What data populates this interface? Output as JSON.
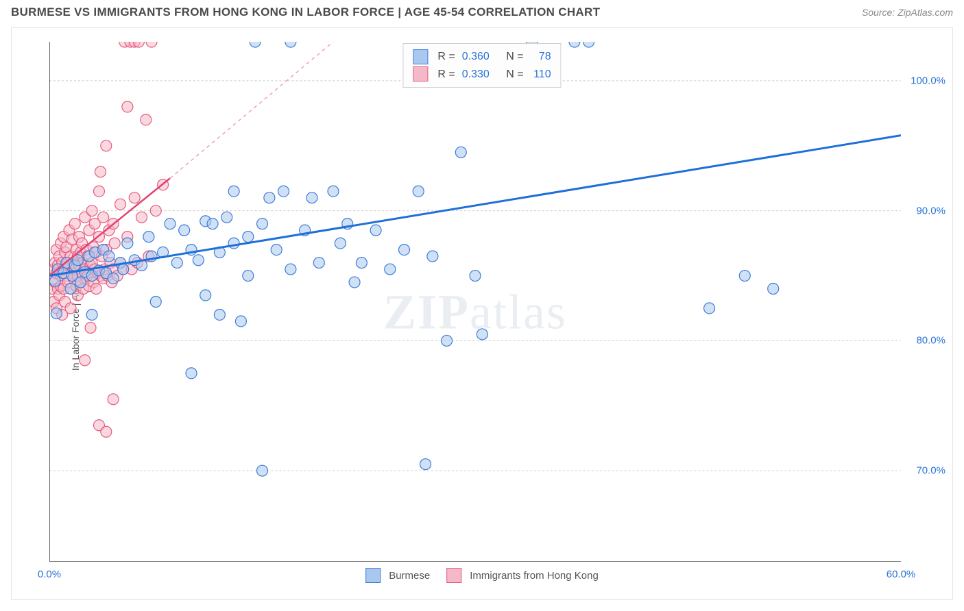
{
  "title": "BURMESE VS IMMIGRANTS FROM HONG KONG IN LABOR FORCE | AGE 45-54 CORRELATION CHART",
  "source": "Source: ZipAtlas.com",
  "ylabel": "In Labor Force | Age 45-54",
  "watermark_a": "ZIP",
  "watermark_b": "atlas",
  "chart": {
    "type": "scatter",
    "xlim": [
      0,
      60
    ],
    "ylim": [
      63,
      103
    ],
    "x_ticks": [
      0,
      10,
      20,
      30,
      40,
      50,
      60
    ],
    "x_tick_labels": [
      "0.0%",
      "",
      "",
      "",
      "",
      "",
      "60.0%"
    ],
    "y_grid": [
      70,
      80,
      90,
      100
    ],
    "y_tick_labels": [
      "70.0%",
      "80.0%",
      "90.0%",
      "100.0%"
    ],
    "grid_color": "#cccccc",
    "axis_color": "#333333",
    "background": "#ffffff",
    "marker_radius": 8,
    "marker_opacity": 0.55,
    "series": [
      {
        "name": "Burmese",
        "fill": "#a9c8ef",
        "stroke": "#3b7dd8",
        "trend_color": "#1e6fd9",
        "trend_width": 3,
        "r_value": "0.360",
        "n_value": "78",
        "trend": {
          "x1": 0,
          "y1": 85.0,
          "x2": 60,
          "y2": 95.8
        },
        "points": [
          [
            0.4,
            84.6
          ],
          [
            0.5,
            82.1
          ],
          [
            0.6,
            85.5
          ],
          [
            1.0,
            85.2
          ],
          [
            1.2,
            86.0
          ],
          [
            1.5,
            84.0
          ],
          [
            1.6,
            85.0
          ],
          [
            1.8,
            85.8
          ],
          [
            2.0,
            86.2
          ],
          [
            2.2,
            84.5
          ],
          [
            2.5,
            85.3
          ],
          [
            2.8,
            86.5
          ],
          [
            3.0,
            85.0
          ],
          [
            3.0,
            82.0
          ],
          [
            3.2,
            86.8
          ],
          [
            3.5,
            85.4
          ],
          [
            3.8,
            87.0
          ],
          [
            4.0,
            85.2
          ],
          [
            4.2,
            86.5
          ],
          [
            4.5,
            84.8
          ],
          [
            5.0,
            86.0
          ],
          [
            5.2,
            85.5
          ],
          [
            5.5,
            87.5
          ],
          [
            6.0,
            86.2
          ],
          [
            6.5,
            85.8
          ],
          [
            7.0,
            88.0
          ],
          [
            7.2,
            86.5
          ],
          [
            7.5,
            83.0
          ],
          [
            8.0,
            86.8
          ],
          [
            8.5,
            89.0
          ],
          [
            9.0,
            86.0
          ],
          [
            9.5,
            88.5
          ],
          [
            10.0,
            87.0
          ],
          [
            10.0,
            77.5
          ],
          [
            10.5,
            86.2
          ],
          [
            11.0,
            89.2
          ],
          [
            11.0,
            83.5
          ],
          [
            11.5,
            89.0
          ],
          [
            12.0,
            86.8
          ],
          [
            12.0,
            82.0
          ],
          [
            12.5,
            89.5
          ],
          [
            13.0,
            87.5
          ],
          [
            13.0,
            91.5
          ],
          [
            13.5,
            81.5
          ],
          [
            14.0,
            88.0
          ],
          [
            14.0,
            85.0
          ],
          [
            14.5,
            103.0
          ],
          [
            15.0,
            89.0
          ],
          [
            15.0,
            70.0
          ],
          [
            15.5,
            91.0
          ],
          [
            16.0,
            87.0
          ],
          [
            16.5,
            91.5
          ],
          [
            17.0,
            85.5
          ],
          [
            17.0,
            103.0
          ],
          [
            18.0,
            88.5
          ],
          [
            18.5,
            91.0
          ],
          [
            19.0,
            86.0
          ],
          [
            20.0,
            91.5
          ],
          [
            20.5,
            87.5
          ],
          [
            21.0,
            89.0
          ],
          [
            21.5,
            84.5
          ],
          [
            22.0,
            86.0
          ],
          [
            23.0,
            88.5
          ],
          [
            24.0,
            85.5
          ],
          [
            25.0,
            87.0
          ],
          [
            26.0,
            91.5
          ],
          [
            26.5,
            70.5
          ],
          [
            27.0,
            86.5
          ],
          [
            28.0,
            80.0
          ],
          [
            29.0,
            94.5
          ],
          [
            30.0,
            85.0
          ],
          [
            30.5,
            80.5
          ],
          [
            34.0,
            103.0
          ],
          [
            37.0,
            103.0
          ],
          [
            38.0,
            103.0
          ],
          [
            46.5,
            82.5
          ],
          [
            49.0,
            85.0
          ],
          [
            51.0,
            84.0
          ]
        ]
      },
      {
        "name": "Immigrants from Hong Kong",
        "fill": "#f4b8c6",
        "stroke": "#e85a7f",
        "trend_color": "#e34070",
        "trend_width": 2.5,
        "r_value": "0.330",
        "n_value": "110",
        "trend": {
          "x1": 0,
          "y1": 85.0,
          "x2": 8.5,
          "y2": 92.5
        },
        "trend_dash": {
          "x1": 8.5,
          "y1": 92.5,
          "x2": 20,
          "y2": 103
        },
        "points": [
          [
            0.2,
            84.0
          ],
          [
            0.3,
            85.5
          ],
          [
            0.3,
            83.0
          ],
          [
            0.4,
            86.0
          ],
          [
            0.4,
            84.5
          ],
          [
            0.5,
            85.2
          ],
          [
            0.5,
            87.0
          ],
          [
            0.5,
            82.5
          ],
          [
            0.6,
            85.8
          ],
          [
            0.6,
            84.0
          ],
          [
            0.7,
            86.5
          ],
          [
            0.7,
            83.5
          ],
          [
            0.8,
            85.0
          ],
          [
            0.8,
            87.5
          ],
          [
            0.8,
            84.2
          ],
          [
            0.9,
            86.0
          ],
          [
            0.9,
            82.0
          ],
          [
            1.0,
            85.5
          ],
          [
            1.0,
            88.0
          ],
          [
            1.0,
            84.0
          ],
          [
            1.1,
            86.8
          ],
          [
            1.1,
            83.0
          ],
          [
            1.2,
            85.0
          ],
          [
            1.2,
            87.2
          ],
          [
            1.3,
            84.5
          ],
          [
            1.3,
            86.0
          ],
          [
            1.4,
            85.8
          ],
          [
            1.4,
            88.5
          ],
          [
            1.5,
            84.0
          ],
          [
            1.5,
            86.5
          ],
          [
            1.5,
            82.5
          ],
          [
            1.6,
            85.2
          ],
          [
            1.6,
            87.8
          ],
          [
            1.7,
            84.8
          ],
          [
            1.7,
            86.0
          ],
          [
            1.8,
            85.5
          ],
          [
            1.8,
            89.0
          ],
          [
            1.9,
            84.2
          ],
          [
            1.9,
            87.0
          ],
          [
            2.0,
            85.0
          ],
          [
            2.0,
            86.5
          ],
          [
            2.0,
            83.5
          ],
          [
            2.1,
            85.8
          ],
          [
            2.1,
            88.0
          ],
          [
            2.2,
            84.5
          ],
          [
            2.2,
            86.8
          ],
          [
            2.3,
            85.2
          ],
          [
            2.3,
            87.5
          ],
          [
            2.4,
            84.0
          ],
          [
            2.4,
            86.0
          ],
          [
            2.5,
            85.5
          ],
          [
            2.5,
            89.5
          ],
          [
            2.5,
            78.5
          ],
          [
            2.6,
            84.8
          ],
          [
            2.6,
            87.0
          ],
          [
            2.7,
            85.0
          ],
          [
            2.7,
            86.5
          ],
          [
            2.8,
            84.2
          ],
          [
            2.8,
            88.5
          ],
          [
            2.9,
            85.8
          ],
          [
            2.9,
            81.0
          ],
          [
            3.0,
            86.0
          ],
          [
            3.0,
            85.0
          ],
          [
            3.0,
            90.0
          ],
          [
            3.1,
            84.5
          ],
          [
            3.1,
            87.2
          ],
          [
            3.2,
            85.5
          ],
          [
            3.2,
            89.0
          ],
          [
            3.3,
            84.0
          ],
          [
            3.3,
            86.8
          ],
          [
            3.4,
            85.2
          ],
          [
            3.5,
            91.5
          ],
          [
            3.5,
            88.0
          ],
          [
            3.5,
            73.5
          ],
          [
            3.6,
            85.0
          ],
          [
            3.6,
            93.0
          ],
          [
            3.7,
            86.5
          ],
          [
            3.8,
            84.8
          ],
          [
            3.8,
            89.5
          ],
          [
            3.9,
            85.5
          ],
          [
            4.0,
            95.0
          ],
          [
            4.0,
            87.0
          ],
          [
            4.0,
            73.0
          ],
          [
            4.1,
            85.0
          ],
          [
            4.2,
            88.5
          ],
          [
            4.3,
            86.0
          ],
          [
            4.4,
            84.5
          ],
          [
            4.5,
            89.0
          ],
          [
            4.5,
            85.5
          ],
          [
            4.5,
            75.5
          ],
          [
            4.6,
            87.5
          ],
          [
            4.8,
            85.0
          ],
          [
            5.0,
            90.5
          ],
          [
            5.0,
            86.0
          ],
          [
            5.2,
            85.5
          ],
          [
            5.3,
            103.0
          ],
          [
            5.5,
            88.0
          ],
          [
            5.5,
            98.0
          ],
          [
            5.7,
            103.0
          ],
          [
            5.8,
            85.5
          ],
          [
            6.0,
            91.0
          ],
          [
            6.0,
            103.0
          ],
          [
            6.2,
            86.0
          ],
          [
            6.3,
            103.0
          ],
          [
            6.5,
            89.5
          ],
          [
            6.8,
            97.0
          ],
          [
            7.0,
            86.5
          ],
          [
            7.2,
            103.0
          ],
          [
            7.5,
            90.0
          ],
          [
            8.0,
            92.0
          ]
        ]
      }
    ],
    "legend_top": {
      "r_label": "R =",
      "n_label": "N ="
    },
    "legend_bottom": [
      "Burmese",
      "Immigrants from Hong Kong"
    ]
  }
}
